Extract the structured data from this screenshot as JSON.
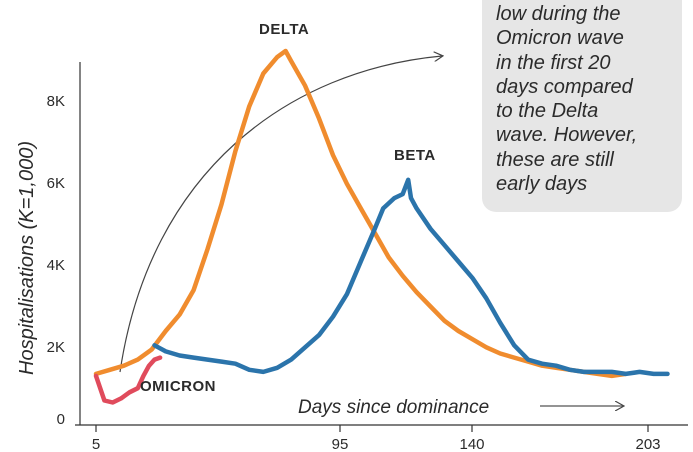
{
  "chart_data": {
    "type": "line",
    "ylabel": "Hospitalisations (K=1,000)",
    "xlabel": "Days since dominance",
    "x_ticks": [
      5,
      95,
      140,
      203
    ],
    "x_tick_labels": [
      "5",
      "95",
      "140",
      "203"
    ],
    "y_ticks": [
      0,
      2000,
      4000,
      6000,
      8000
    ],
    "y_tick_labels": [
      "0",
      "2K",
      "4K",
      "6K",
      "8K"
    ],
    "xlim": [
      5,
      210
    ],
    "ylim": [
      0,
      9000
    ],
    "grid": false,
    "annotation_lines": [
      "low during the",
      "Omicron wave",
      "in the first 20",
      "days compared",
      "to the Delta",
      "wave.  However,",
      "these are still",
      "early days"
    ],
    "series": [
      {
        "name": "DELTA",
        "color": "#f08c2e",
        "points": [
          [
            5,
            1250
          ],
          [
            10,
            1350
          ],
          [
            15,
            1450
          ],
          [
            20,
            1600
          ],
          [
            25,
            1850
          ],
          [
            30,
            2300
          ],
          [
            35,
            2700
          ],
          [
            40,
            3300
          ],
          [
            45,
            4300
          ],
          [
            50,
            5400
          ],
          [
            55,
            6700
          ],
          [
            60,
            7800
          ],
          [
            65,
            8600
          ],
          [
            70,
            9000
          ],
          [
            73,
            9150
          ],
          [
            75,
            8900
          ],
          [
            80,
            8300
          ],
          [
            85,
            7500
          ],
          [
            90,
            6600
          ],
          [
            95,
            5900
          ],
          [
            100,
            5300
          ],
          [
            105,
            4700
          ],
          [
            110,
            4100
          ],
          [
            115,
            3650
          ],
          [
            120,
            3250
          ],
          [
            125,
            2900
          ],
          [
            130,
            2550
          ],
          [
            135,
            2300
          ],
          [
            140,
            2100
          ],
          [
            145,
            1900
          ],
          [
            150,
            1750
          ],
          [
            155,
            1650
          ],
          [
            160,
            1550
          ],
          [
            165,
            1450
          ],
          [
            170,
            1400
          ],
          [
            175,
            1350
          ],
          [
            180,
            1300
          ],
          [
            185,
            1250
          ],
          [
            190,
            1200
          ],
          [
            195,
            1250
          ]
        ]
      },
      {
        "name": "BETA",
        "color": "#2b74ab",
        "points": [
          [
            26,
            1950
          ],
          [
            30,
            1800
          ],
          [
            35,
            1700
          ],
          [
            40,
            1650
          ],
          [
            45,
            1600
          ],
          [
            50,
            1550
          ],
          [
            55,
            1500
          ],
          [
            60,
            1350
          ],
          [
            65,
            1300
          ],
          [
            70,
            1400
          ],
          [
            75,
            1600
          ],
          [
            80,
            1900
          ],
          [
            85,
            2200
          ],
          [
            90,
            2650
          ],
          [
            95,
            3200
          ],
          [
            100,
            4000
          ],
          [
            105,
            4800
          ],
          [
            108,
            5300
          ],
          [
            112,
            5550
          ],
          [
            115,
            5650
          ],
          [
            117,
            6000
          ],
          [
            118,
            5550
          ],
          [
            120,
            5300
          ],
          [
            125,
            4800
          ],
          [
            130,
            4400
          ],
          [
            135,
            4000
          ],
          [
            140,
            3600
          ],
          [
            145,
            3100
          ],
          [
            150,
            2500
          ],
          [
            155,
            1950
          ],
          [
            160,
            1600
          ],
          [
            165,
            1500
          ],
          [
            170,
            1450
          ],
          [
            175,
            1350
          ],
          [
            180,
            1300
          ],
          [
            185,
            1300
          ],
          [
            190,
            1300
          ],
          [
            195,
            1250
          ],
          [
            200,
            1300
          ],
          [
            205,
            1250
          ],
          [
            210,
            1250
          ]
        ]
      },
      {
        "name": "OMICRON",
        "color": "#e04b5c",
        "points": [
          [
            5,
            1200
          ],
          [
            8,
            600
          ],
          [
            11,
            550
          ],
          [
            14,
            650
          ],
          [
            17,
            800
          ],
          [
            20,
            900
          ],
          [
            22,
            1200
          ],
          [
            24,
            1450
          ],
          [
            26,
            1600
          ],
          [
            28,
            1650
          ]
        ]
      }
    ]
  }
}
